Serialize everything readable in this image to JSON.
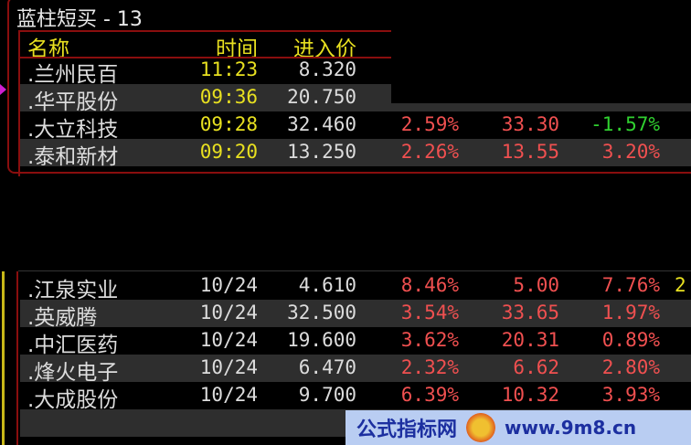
{
  "panel_title": "蓝柱短买 - 13",
  "columns": {
    "name": "名称",
    "time": "时间",
    "price": "进入价"
  },
  "top_rows": [
    {
      "name": ".兰州民百",
      "time": "11:23",
      "price": "8.320",
      "partial": "-"
    },
    {
      "name": ".华平股份",
      "time": "09:36",
      "price": "20.750"
    },
    {
      "name": ".大立科技",
      "time": "09:28",
      "price": "32.460",
      "pct": "2.59%",
      "cur": "33.30",
      "chg": "-1.57%"
    },
    {
      "name": ".泰和新材",
      "time": "09:20",
      "price": "13.250",
      "pct": "2.26%",
      "cur": "13.55",
      "chg": "3.20%"
    }
  ],
  "bottom_rows": [
    {
      "name": ".江泉实业",
      "time": "10/24",
      "price": "4.610",
      "pct": "8.46%",
      "cur": "5.00",
      "chg": "7.76%",
      "extra": "2"
    },
    {
      "name": ".英威腾",
      "time": "10/24",
      "price": "32.500",
      "pct": "3.54%",
      "cur": "33.65",
      "chg": "1.97%"
    },
    {
      "name": ".中汇医药",
      "time": "10/24",
      "price": "19.600",
      "pct": "3.62%",
      "cur": "20.31",
      "chg": "0.89%"
    },
    {
      "name": ".烽火电子",
      "time": "10/24",
      "price": "6.470",
      "pct": "2.32%",
      "cur": "6.62",
      "chg": "2.80%"
    },
    {
      "name": ".大成股份",
      "time": "10/24",
      "price": "9.700",
      "pct": "6.39%",
      "cur": "10.32",
      "chg": "3.93%"
    }
  ],
  "watermark": {
    "text": "公式指标网",
    "url": "www.9m8.cn"
  },
  "colors": {
    "up": "#f05050",
    "down": "#30d030",
    "time": "#e8e020",
    "frame": "#8a0e0e"
  }
}
